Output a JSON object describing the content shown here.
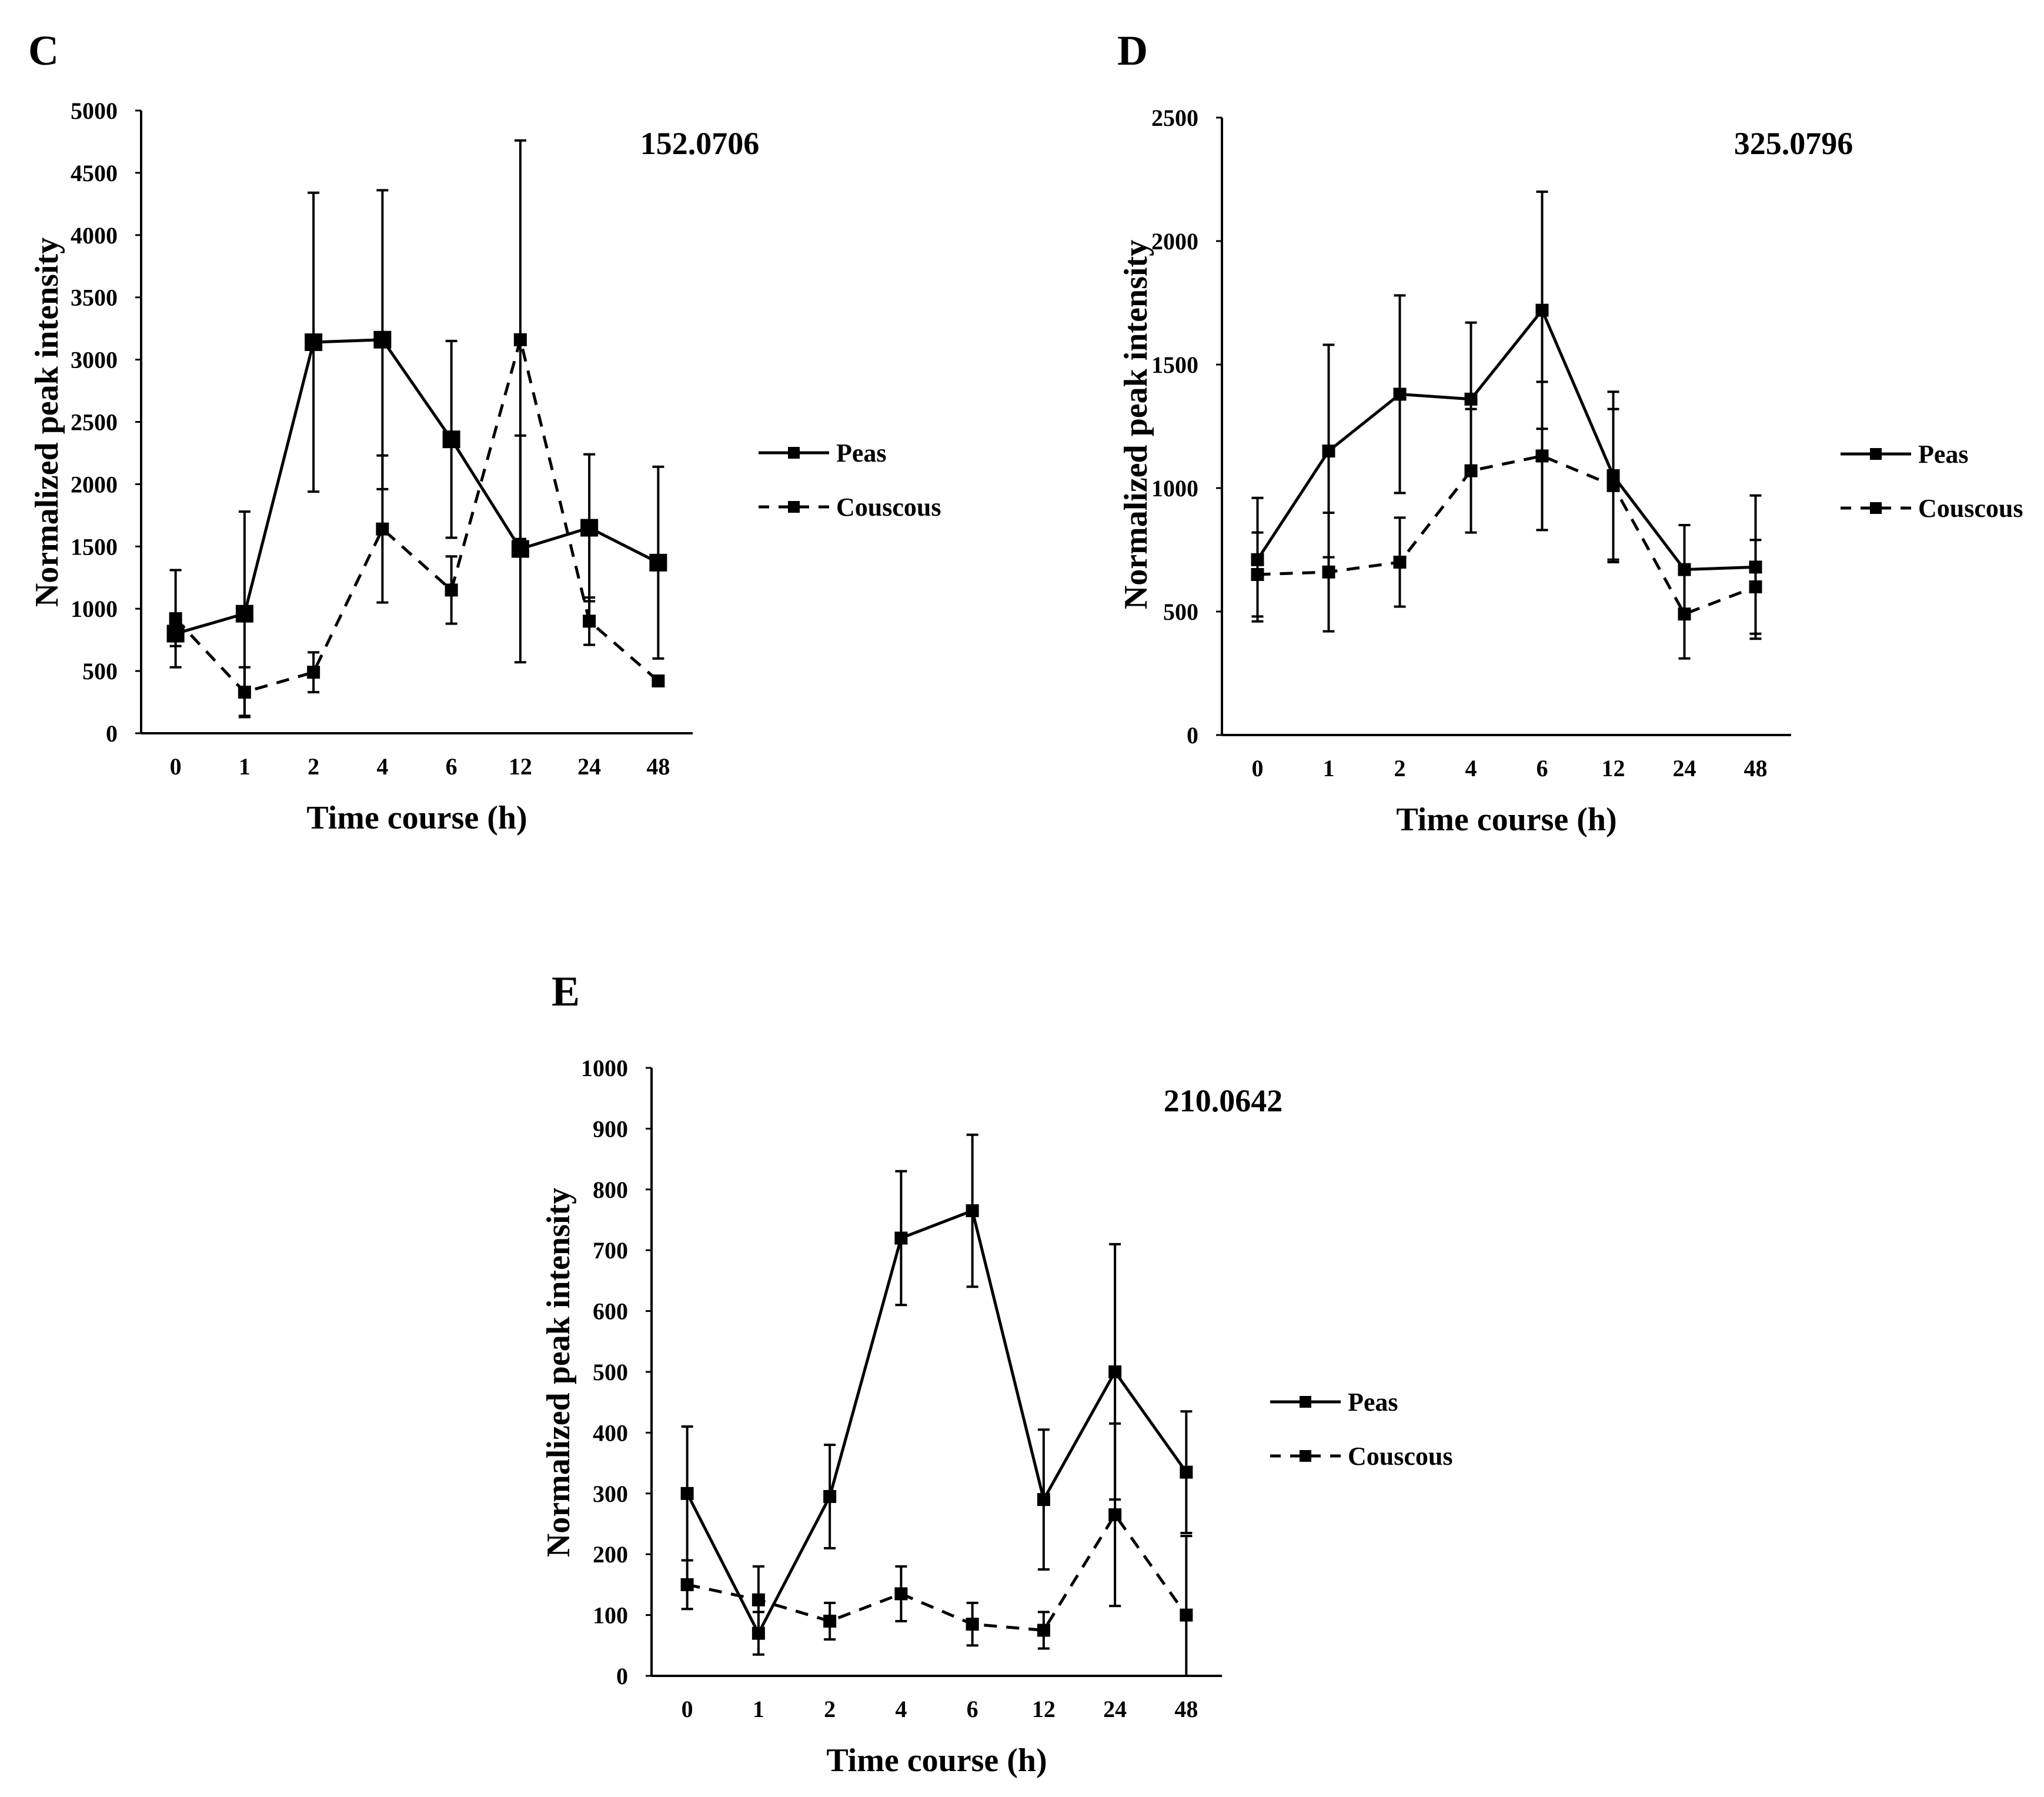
{
  "chart_data": [
    {
      "type": "line",
      "panel": "C",
      "title": "152.0706",
      "xlabel": "Time course (h)",
      "ylabel": "Normalized peak intensity",
      "categories": [
        "0",
        "1",
        "2",
        "4",
        "6",
        "12",
        "24",
        "48"
      ],
      "ylim": [
        0,
        5000
      ],
      "yticks": [
        0,
        500,
        1000,
        1500,
        2000,
        2500,
        3000,
        3500,
        4000,
        4500,
        5000
      ],
      "legend_position": "right",
      "series": [
        {
          "name": "Peas",
          "style": "solid",
          "values": [
            800,
            960,
            3140,
            3160,
            2360,
            1480,
            1650,
            1370
          ],
          "errors": [
            100,
            820,
            1200,
            1200,
            790,
            910,
            590,
            770
          ]
        },
        {
          "name": "Couscous",
          "style": "dashed",
          "values": [
            920,
            330,
            490,
            1640,
            1150,
            3160,
            900,
            420
          ],
          "errors": [
            390,
            200,
            160,
            590,
            270,
            1600,
            190,
            30
          ]
        }
      ]
    },
    {
      "type": "line",
      "panel": "D",
      "title": "325.0796",
      "xlabel": "Time course (h)",
      "ylabel": "Normalized peak intensity",
      "categories": [
        "0",
        "1",
        "2",
        "4",
        "6",
        "12",
        "24",
        "48"
      ],
      "ylim": [
        0,
        2500
      ],
      "yticks": [
        0,
        500,
        1000,
        1500,
        2000,
        2500
      ],
      "legend_position": "right",
      "series": [
        {
          "name": "Peas",
          "style": "solid",
          "values": [
            710,
            1150,
            1380,
            1360,
            1720,
            1050,
            670,
            680
          ],
          "errors": [
            250,
            430,
            400,
            310,
            480,
            340,
            180,
            290
          ]
        },
        {
          "name": "Couscous",
          "style": "dashed",
          "values": [
            650,
            660,
            700,
            1070,
            1130,
            1010,
            490,
            600
          ],
          "errors": [
            170,
            240,
            180,
            250,
            300,
            310,
            180,
            190
          ]
        }
      ]
    },
    {
      "type": "line",
      "panel": "E",
      "title": "210.0642",
      "xlabel": "Time course (h)",
      "ylabel": "Normalized peak intensity",
      "categories": [
        "0",
        "1",
        "2",
        "4",
        "6",
        "12",
        "24",
        "48"
      ],
      "ylim": [
        0,
        1000
      ],
      "yticks": [
        0,
        100,
        200,
        300,
        400,
        500,
        600,
        700,
        800,
        900,
        1000
      ],
      "legend_position": "right",
      "series": [
        {
          "name": "Peas",
          "style": "solid",
          "values": [
            300,
            70,
            295,
            720,
            765,
            290,
            500,
            335
          ],
          "errors": [
            110,
            35,
            85,
            110,
            125,
            115,
            210,
            100
          ]
        },
        {
          "name": "Couscous",
          "style": "dashed",
          "values": [
            150,
            125,
            90,
            135,
            85,
            75,
            265,
            100
          ],
          "errors": [
            40,
            55,
            30,
            45,
            35,
            30,
            150,
            130
          ]
        }
      ]
    }
  ]
}
